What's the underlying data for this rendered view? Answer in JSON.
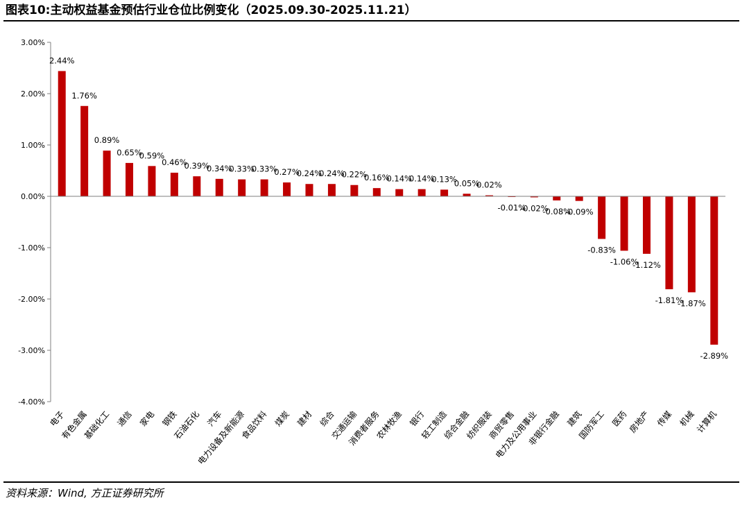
{
  "header": {
    "title": "图表10:主动权益基金预估行业仓位比例变化（2025.09.30-2025.11.21）"
  },
  "footer": {
    "source": "资料来源：Wind, 方正证券研究所"
  },
  "colors": {
    "bar": "#c00000",
    "axis": "#7f7f7f",
    "text": "#000000"
  },
  "chart_data": {
    "type": "bar",
    "title": "",
    "xlabel": "",
    "ylabel": "",
    "ylim": [
      -4,
      3
    ],
    "yticks": [
      3,
      2,
      1,
      0,
      -1,
      -2,
      -3,
      -4
    ],
    "ytick_labels": [
      "3.00%",
      "2.00%",
      "1.00%",
      "0.00%",
      "-1.00%",
      "-2.00%",
      "-3.00%",
      "-4.00%"
    ],
    "grid": false,
    "legend": "none",
    "categories": [
      "电子",
      "有色金属",
      "基础化工",
      "通信",
      "家电",
      "钢铁",
      "石油石化",
      "汽车",
      "电力设备及新能源",
      "食品饮料",
      "煤炭",
      "建材",
      "综合",
      "交通运输",
      "消费者服务",
      "农林牧渔",
      "银行",
      "轻工制造",
      "综合金融",
      "纺织服装",
      "商贸零售",
      "电力及公用事业",
      "非银行金融",
      "建筑",
      "国防军工",
      "医药",
      "房地产",
      "传媒",
      "机械",
      "计算机"
    ],
    "values": [
      2.44,
      1.76,
      0.89,
      0.65,
      0.59,
      0.46,
      0.39,
      0.34,
      0.33,
      0.33,
      0.27,
      0.24,
      0.24,
      0.22,
      0.16,
      0.14,
      0.14,
      0.13,
      0.05,
      0.02,
      -0.01,
      -0.02,
      -0.08,
      -0.09,
      -0.83,
      -1.06,
      -1.12,
      -1.81,
      -1.87,
      -2.89
    ],
    "data_labels": [
      "2.44%",
      "1.76%",
      "0.89%",
      "0.65%",
      "0.59%",
      "0.46%",
      "0.39%",
      "0.34%",
      "0.33%",
      "0.33%",
      "0.27%",
      "0.24%",
      "0.24%",
      "0.22%",
      "0.16%",
      "0.14%",
      "0.14%",
      "0.13%",
      "0.05%",
      "0.02%",
      "-0.01%",
      "-0.02%",
      "-0.08%",
      "-0.09%",
      "-0.83%",
      "-1.06%",
      "-1.12%",
      "-1.81%",
      "-1.87%",
      "-2.89%"
    ]
  }
}
